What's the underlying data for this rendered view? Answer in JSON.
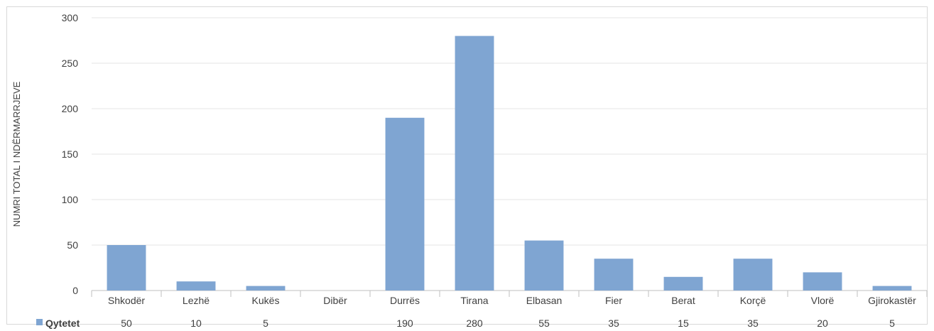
{
  "chart_data": {
    "type": "bar",
    "ylabel": "NUMRI TOTAL I NDËRMARRJEVE",
    "ylim": [
      0,
      300
    ],
    "yticks": [
      0,
      50,
      100,
      150,
      200,
      250,
      300
    ],
    "grid": true,
    "categories": [
      "Shkodër",
      "Lezhë",
      "Kukës",
      "Dibër",
      "Durrës",
      "Tirana",
      "Elbasan",
      "Fier",
      "Berat",
      "Korçë",
      "Vlorë",
      "Gjirokastër"
    ],
    "series": [
      {
        "name": "Qytetet",
        "color": "#7fa5d2",
        "values": [
          50,
          10,
          5,
          null,
          190,
          280,
          55,
          35,
          15,
          35,
          20,
          5
        ]
      }
    ],
    "data_table": true
  }
}
